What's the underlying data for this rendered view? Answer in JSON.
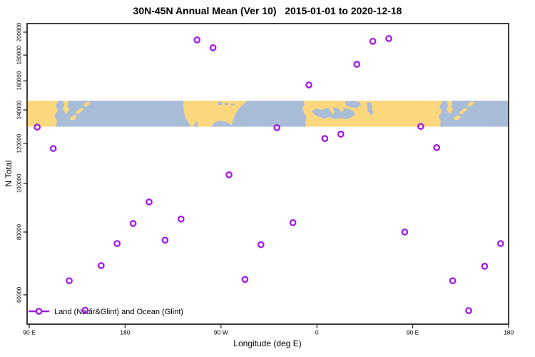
{
  "title": "30N-45N Annual Mean (Ver 10)   2015-01-01 to 2020-12-18",
  "chart_data": {
    "type": "scatter",
    "title": "30N-45N Annual Mean (Ver 10)   2015-01-01 to 2020-12-18",
    "xlabel": "Longitude (deg E)",
    "ylabel": "N Total",
    "y_scale": "log",
    "xlim": [
      88,
      540
    ],
    "ylim": [
      52400,
      208300
    ],
    "x_ticks": [
      {
        "lon": 90,
        "label": "90 E"
      },
      {
        "lon": 180,
        "label": "180"
      },
      {
        "lon": 270,
        "label": "90 W"
      },
      {
        "lon": 360,
        "label": "0"
      },
      {
        "lon": 450,
        "label": "90 E"
      },
      {
        "lon": 540,
        "label": "180"
      }
    ],
    "y_ticks": [
      {
        "v": 60000,
        "label": "60000"
      },
      {
        "v": 80000,
        "label": "80000"
      },
      {
        "v": 100000,
        "label": "100000"
      },
      {
        "v": 120000,
        "label": "120000"
      },
      {
        "v": 140000,
        "label": "140000"
      },
      {
        "v": 160000,
        "label": "160000"
      },
      {
        "v": 180000,
        "label": "180000"
      },
      {
        "v": 200000,
        "label": "200000"
      }
    ],
    "legend": {
      "position": "bottom-left",
      "label": "Land (Nadir&Glint) and Ocean (Glint)"
    },
    "series": [
      {
        "name": "Land (Nadir&Glint) and Ocean (Glint)",
        "marker": "open-circle",
        "color": "#A01AE6",
        "points": [
          {
            "lon": 97.5,
            "n": 129400
          },
          {
            "lon": 112.5,
            "n": 117300
          },
          {
            "lon": 127.5,
            "n": 64000
          },
          {
            "lon": 142.5,
            "n": 55900
          },
          {
            "lon": 157.5,
            "n": 68600
          },
          {
            "lon": 172.5,
            "n": 75900
          },
          {
            "lon": 187.5,
            "n": 83200
          },
          {
            "lon": 202.5,
            "n": 91800
          },
          {
            "lon": 217.5,
            "n": 77100
          },
          {
            "lon": 232.5,
            "n": 84900
          },
          {
            "lon": 247.5,
            "n": 193000
          },
          {
            "lon": 262.5,
            "n": 186200
          },
          {
            "lon": 277.5,
            "n": 104000
          },
          {
            "lon": 292.5,
            "n": 64400
          },
          {
            "lon": 307.5,
            "n": 75500
          },
          {
            "lon": 322.5,
            "n": 129100
          },
          {
            "lon": 337.5,
            "n": 83500
          },
          {
            "lon": 352.5,
            "n": 157000
          },
          {
            "lon": 367.5,
            "n": 122800
          },
          {
            "lon": 382.5,
            "n": 125300
          },
          {
            "lon": 397.5,
            "n": 172600
          },
          {
            "lon": 412.5,
            "n": 191800
          },
          {
            "lon": 427.5,
            "n": 194200
          },
          {
            "lon": 442.5,
            "n": 80000
          },
          {
            "lon": 457.5,
            "n": 129800
          },
          {
            "lon": 472.5,
            "n": 117800
          },
          {
            "lon": 487.5,
            "n": 64000
          },
          {
            "lon": 502.5,
            "n": 55800
          },
          {
            "lon": 517.5,
            "n": 68400
          },
          {
            "lon": 532.5,
            "n": 75900
          }
        ]
      }
    ],
    "map_band": {
      "description": "world land/ocean strip for latitude band 30N-45N",
      "land_color": "#FBD77E",
      "ocean_color": "#A9BCD8",
      "value_top": 146000,
      "value_bottom": 130000
    }
  }
}
